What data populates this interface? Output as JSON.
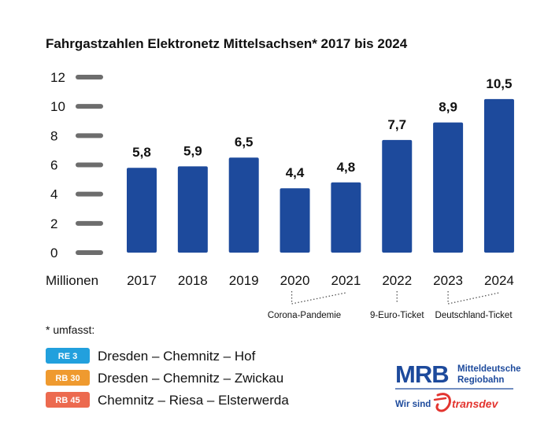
{
  "chart_data": {
    "type": "bar",
    "title": "Fahrgastzahlen Elektronetz Mittelsachsen* 2017 bis 2024",
    "xlabel": "Millionen",
    "ylabel": "",
    "ylim": [
      0,
      12
    ],
    "yticks": [
      "0",
      "2",
      "4",
      "6",
      "8",
      "10",
      "12"
    ],
    "ytick_values": [
      0,
      2,
      4,
      6,
      8,
      10,
      12
    ],
    "categories": [
      "2017",
      "2018",
      "2019",
      "2020",
      "2021",
      "2022",
      "2023",
      "2024"
    ],
    "values": [
      5.8,
      5.9,
      6.5,
      4.4,
      4.8,
      7.7,
      8.9,
      10.5
    ],
    "value_labels": [
      "5,8",
      "5,9",
      "6,5",
      "4,4",
      "4,8",
      "7,7",
      "8,9",
      "10,5"
    ],
    "bar_color": "#1d4a9c",
    "tick_color": "#6d6d6d",
    "annotations": [
      {
        "text": "Corona-Pandemie",
        "categories": [
          "2020",
          "2021"
        ]
      },
      {
        "text": "9-Euro-Ticket",
        "categories": [
          "2022"
        ]
      },
      {
        "text": "Deutschland-Ticket",
        "categories": [
          "2023",
          "2024"
        ]
      }
    ]
  },
  "footnote": "* umfasst:",
  "routes": [
    {
      "badge": "RE 3",
      "color": "#22a0dd",
      "text": "Dresden – Chemnitz – Hof"
    },
    {
      "badge": "RB 30",
      "color": "#ef9a2f",
      "text": "Dresden – Chemnitz – Zwickau"
    },
    {
      "badge": "RB 45",
      "color": "#ec6a4f",
      "text": "Chemnitz – Riesa – Elsterwerda"
    }
  ],
  "logo": {
    "brand": "MRB",
    "line1": "Mitteldeutsche",
    "line2": "Regiobahn",
    "wir_sind": "Wir sind",
    "partner": "transdev",
    "brand_color": "#1d4a9c",
    "partner_color": "#e3342f"
  }
}
